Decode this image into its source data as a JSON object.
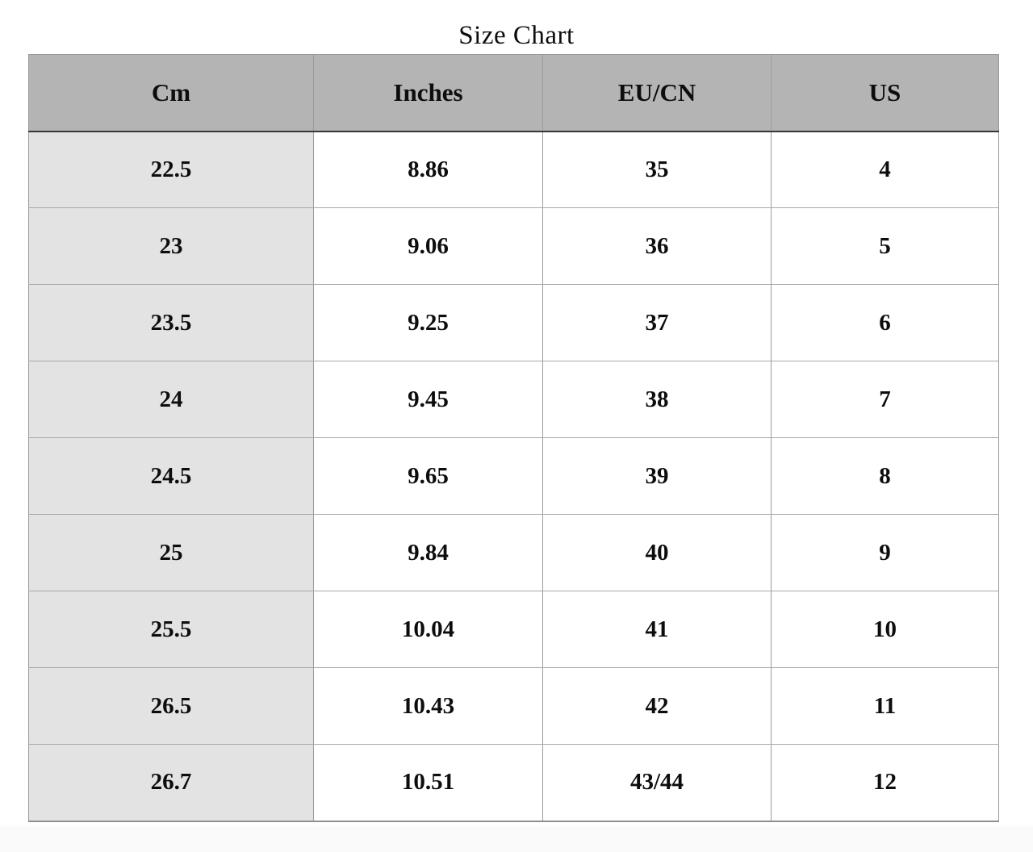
{
  "page": {
    "title": "Size Chart"
  },
  "table": {
    "columns": [
      "Cm",
      "Inches",
      "EU/CN",
      "US"
    ],
    "rows": [
      [
        "22.5",
        "8.86",
        "35",
        "4"
      ],
      [
        "23",
        "9.06",
        "36",
        "5"
      ],
      [
        "23.5",
        "9.25",
        "37",
        "6"
      ],
      [
        "24",
        "9.45",
        "38",
        "7"
      ],
      [
        "24.5",
        "9.65",
        "39",
        "8"
      ],
      [
        "25",
        "9.84",
        "40",
        "9"
      ],
      [
        "25.5",
        "10.04",
        "41",
        "10"
      ],
      [
        "26.5",
        "10.43",
        "42",
        "11"
      ],
      [
        "26.7",
        "10.51",
        "43/44",
        "12"
      ]
    ]
  },
  "colors": {
    "page_bg": "#ffffff",
    "header_bg": "#b4b4b4",
    "row_label_bg": "#e3e3e3",
    "grid_line": "#9a9a9a",
    "row_line": "#a8a8a8",
    "header_divider": "#383838",
    "outer_border": "#9a9a9a",
    "bottom_border": "#8f8f8f",
    "footer_bg": "#fafafa",
    "text_color": "#0d0d0d"
  },
  "chart_data": {
    "type": "table",
    "title": "Size Chart",
    "columns": [
      "Cm",
      "Inches",
      "EU/CN",
      "US"
    ],
    "rows": [
      [
        "22.5",
        "8.86",
        "35",
        "4"
      ],
      [
        "23",
        "9.06",
        "36",
        "5"
      ],
      [
        "23.5",
        "9.25",
        "37",
        "6"
      ],
      [
        "24",
        "9.45",
        "38",
        "7"
      ],
      [
        "24.5",
        "9.65",
        "39",
        "8"
      ],
      [
        "25",
        "9.84",
        "40",
        "9"
      ],
      [
        "25.5",
        "10.04",
        "41",
        "10"
      ],
      [
        "26.5",
        "10.43",
        "42",
        "11"
      ],
      [
        "26.7",
        "10.51",
        "43/44",
        "12"
      ]
    ],
    "layout": {
      "header_position": "top",
      "grid": true,
      "first_column_shaded": true
    }
  }
}
